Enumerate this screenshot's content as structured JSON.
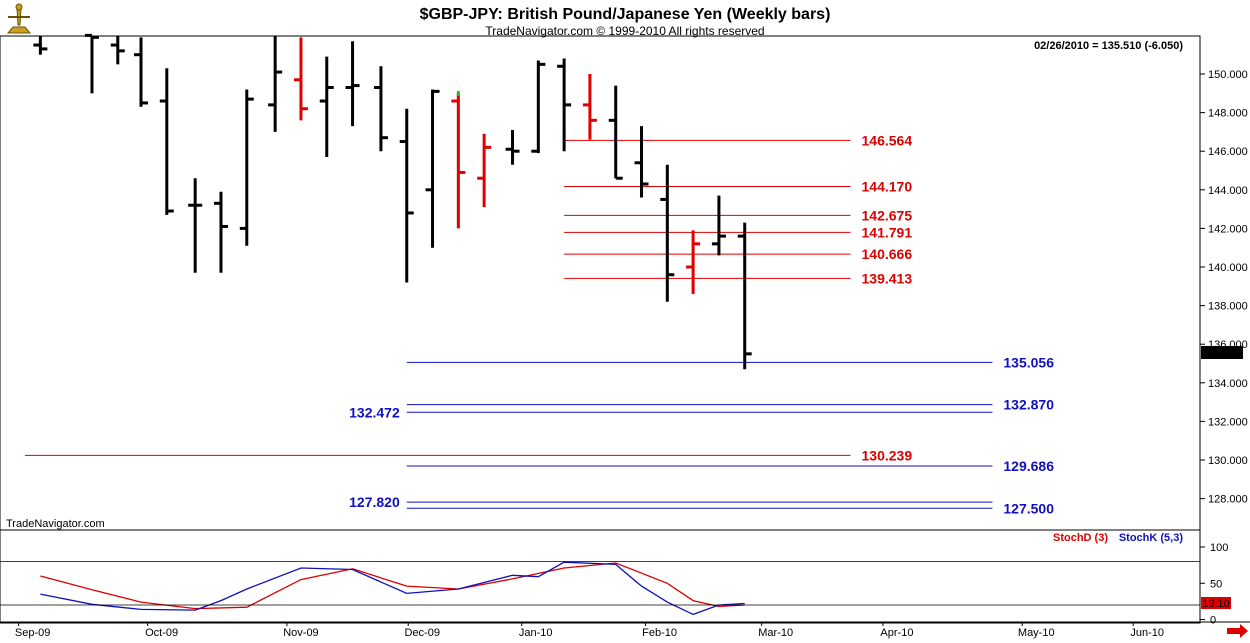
{
  "header": {
    "title": "$GBP-JPY:  British Pound/Japanese Yen  (Weekly bars)",
    "subtitle": "TradeNavigator.com © 1999-2010 All rights reserved",
    "last_info": "02/26/2010 = 135.510 (-6.050)",
    "watermark": "TradeNavigator.com"
  },
  "chart_data": [
    {
      "type": "ohlc",
      "title": "$GBP-JPY:  British Pound/Japanese Yen  (Weekly bars)",
      "ylim": [
        126.5,
        152.0
      ],
      "y_ticks": [
        "128.000",
        "130.000",
        "132.000",
        "134.000",
        "136.000",
        "138.000",
        "140.000",
        "142.000",
        "144.000",
        "146.000",
        "148.000",
        "150.000"
      ],
      "y_tick_values": [
        128,
        130,
        132,
        134,
        136,
        138,
        140,
        142,
        144,
        146,
        148,
        150
      ],
      "x_labels": [
        "Sep-09",
        "Oct-09",
        "Nov-09",
        "Dec-09",
        "Jan-10",
        "Feb-10",
        "Mar-10",
        "Apr-10",
        "May-10",
        "Jun-10"
      ],
      "last_price": "135.510",
      "colors": {
        "down": "#000000",
        "up": "#e00000",
        "support": "#1010c0",
        "resistance": "#dd0000"
      },
      "bars": [
        {
          "w": 0.6,
          "o": 151.5,
          "h": 152.0,
          "l": 151.0,
          "c": 151.3,
          "red": false
        },
        {
          "w": 2.6,
          "o": 152.0,
          "h": 152.0,
          "l": 149.0,
          "c": 151.9,
          "red": false
        },
        {
          "w": 3.6,
          "o": 151.5,
          "h": 152.0,
          "l": 150.5,
          "c": 151.2,
          "red": false
        },
        {
          "w": 4.5,
          "o": 151.0,
          "h": 151.9,
          "l": 148.3,
          "c": 148.5,
          "red": false
        },
        {
          "w": 5.5,
          "o": 148.6,
          "h": 150.3,
          "l": 142.7,
          "c": 142.9,
          "red": false
        },
        {
          "w": 6.6,
          "o": 143.2,
          "h": 144.6,
          "l": 139.7,
          "c": 143.2,
          "red": false
        },
        {
          "w": 7.6,
          "o": 143.3,
          "h": 143.9,
          "l": 139.7,
          "c": 142.1,
          "red": false
        },
        {
          "w": 8.6,
          "o": 142.0,
          "h": 149.2,
          "l": 141.1,
          "c": 148.7,
          "red": false
        },
        {
          "w": 9.7,
          "o": 148.4,
          "h": 152.0,
          "l": 147.0,
          "c": 150.1,
          "red": false
        },
        {
          "w": 10.7,
          "o": 149.7,
          "h": 151.9,
          "l": 147.6,
          "c": 148.2,
          "red": true
        },
        {
          "w": 11.7,
          "o": 148.6,
          "h": 150.9,
          "l": 145.7,
          "c": 149.3,
          "red": false
        },
        {
          "w": 12.7,
          "o": 149.3,
          "h": 151.7,
          "l": 147.3,
          "c": 149.4,
          "red": false
        },
        {
          "w": 13.8,
          "o": 149.3,
          "h": 150.4,
          "l": 146.0,
          "c": 146.7,
          "red": false
        },
        {
          "w": 14.8,
          "o": 146.5,
          "h": 148.2,
          "l": 139.2,
          "c": 142.8,
          "red": false
        },
        {
          "w": 15.8,
          "o": 144.0,
          "h": 149.2,
          "l": 141.0,
          "c": 149.1,
          "red": false
        },
        {
          "w": 16.8,
          "o": 148.6,
          "h": 149.0,
          "l": 142.0,
          "c": 144.9,
          "red": true
        },
        {
          "w": 17.8,
          "o": 144.6,
          "h": 146.9,
          "l": 143.1,
          "c": 146.2,
          "red": true
        },
        {
          "w": 18.9,
          "o": 146.1,
          "h": 147.1,
          "l": 145.3,
          "c": 146.0,
          "red": false
        },
        {
          "w": 19.9,
          "o": 146.0,
          "h": 150.7,
          "l": 145.9,
          "c": 150.5,
          "red": false
        },
        {
          "w": 20.9,
          "o": 150.4,
          "h": 150.8,
          "l": 146.0,
          "c": 148.4,
          "red": false
        },
        {
          "w": 21.9,
          "o": 148.4,
          "h": 150.0,
          "l": 146.6,
          "c": 147.6,
          "red": true
        },
        {
          "w": 22.9,
          "o": 147.6,
          "h": 149.4,
          "l": 144.6,
          "c": 144.6,
          "red": false
        },
        {
          "w": 23.9,
          "o": 145.4,
          "h": 147.3,
          "l": 143.6,
          "c": 144.3,
          "red": false
        },
        {
          "w": 24.9,
          "o": 143.5,
          "h": 145.3,
          "l": 138.2,
          "c": 139.6,
          "red": false
        },
        {
          "w": 25.9,
          "o": 140.0,
          "h": 141.9,
          "l": 138.6,
          "c": 141.2,
          "red": true
        },
        {
          "w": 26.9,
          "o": 141.2,
          "h": 143.7,
          "l": 140.6,
          "c": 141.6,
          "red": false
        },
        {
          "w": 27.9,
          "o": 141.6,
          "h": 142.3,
          "l": 134.7,
          "c": 135.5,
          "red": false
        }
      ],
      "levels": [
        {
          "value": 146.564,
          "label": "146.564",
          "color": "#dd0000",
          "w0": 20.9,
          "w1": 32.0,
          "label_side": "right"
        },
        {
          "value": 144.17,
          "label": "144.170",
          "color": "#dd0000",
          "w0": 20.9,
          "w1": 32.0,
          "label_side": "right"
        },
        {
          "value": 142.675,
          "label": "142.675",
          "color": "#dd0000",
          "w0": 20.9,
          "w1": 32.0,
          "label_side": "right"
        },
        {
          "value": 141.791,
          "label": "141.791",
          "color": "#dd0000",
          "w0": 20.9,
          "w1": 32.0,
          "label_side": "right"
        },
        {
          "value": 140.666,
          "label": "140.666",
          "color": "#dd0000",
          "w0": 20.9,
          "w1": 32.0,
          "label_side": "right"
        },
        {
          "value": 139.413,
          "label": "139.413",
          "color": "#dd0000",
          "w0": 20.9,
          "w1": 32.0,
          "label_side": "right"
        },
        {
          "value": 135.056,
          "label": "135.056",
          "color": "#1010c0",
          "w0": 14.8,
          "w1": 37.5,
          "label_side": "right"
        },
        {
          "value": 132.87,
          "label": "132.870",
          "color": "#1010c0",
          "w0": 14.8,
          "w1": 37.5,
          "label_side": "right"
        },
        {
          "value": 132.472,
          "label": "132.472",
          "color": "#1010c0",
          "w0": 14.8,
          "w1": 37.5,
          "label_side": "left"
        },
        {
          "value": 130.239,
          "label": "130.239",
          "color": "#dd0000",
          "w0": 0,
          "w1": 32.0,
          "label_side": "right"
        },
        {
          "value": 129.686,
          "label": "129.686",
          "color": "#1010c0",
          "w0": 14.8,
          "w1": 37.5,
          "label_side": "right"
        },
        {
          "value": 127.82,
          "label": "127.820",
          "color": "#1010c0",
          "w0": 14.8,
          "w1": 37.5,
          "label_side": "left"
        },
        {
          "value": 127.5,
          "label": "127.500",
          "color": "#1010c0",
          "w0": 14.8,
          "w1": 37.5,
          "label_side": "right"
        }
      ]
    },
    {
      "type": "line",
      "title": "Stochastic",
      "ylim": [
        0,
        100
      ],
      "y_ticks": [
        "100",
        "50",
        "0"
      ],
      "y_tick_values": [
        100,
        50,
        0
      ],
      "ref_lines": [
        80,
        20
      ],
      "last_value": "19.10",
      "series": [
        {
          "name": "StochD (3)",
          "color": "#dd0000",
          "points": [
            [
              0.6,
              60
            ],
            [
              2.6,
              41
            ],
            [
              4.5,
              24
            ],
            [
              6.6,
              15
            ],
            [
              8.6,
              17
            ],
            [
              10.7,
              55
            ],
            [
              12.7,
              70
            ],
            [
              14.8,
              46
            ],
            [
              16.8,
              42
            ],
            [
              18.9,
              56
            ],
            [
              20.9,
              71
            ],
            [
              22.9,
              78
            ],
            [
              24.9,
              50
            ],
            [
              25.9,
              26
            ],
            [
              26.9,
              18
            ],
            [
              27.9,
              20
            ]
          ]
        },
        {
          "name": "StochK (5,3)",
          "color": "#1010c0",
          "points": [
            [
              0.6,
              35
            ],
            [
              2.6,
              21
            ],
            [
              4.5,
              14
            ],
            [
              6.6,
              13
            ],
            [
              7.6,
              26
            ],
            [
              8.6,
              42
            ],
            [
              10.7,
              71
            ],
            [
              12.7,
              69
            ],
            [
              14.8,
              36
            ],
            [
              16.8,
              42
            ],
            [
              18.9,
              61
            ],
            [
              19.9,
              59
            ],
            [
              20.9,
              79
            ],
            [
              22.9,
              76
            ],
            [
              23.9,
              46
            ],
            [
              24.9,
              24
            ],
            [
              25.9,
              7
            ],
            [
              26.9,
              20
            ],
            [
              27.9,
              22
            ]
          ]
        }
      ]
    }
  ]
}
